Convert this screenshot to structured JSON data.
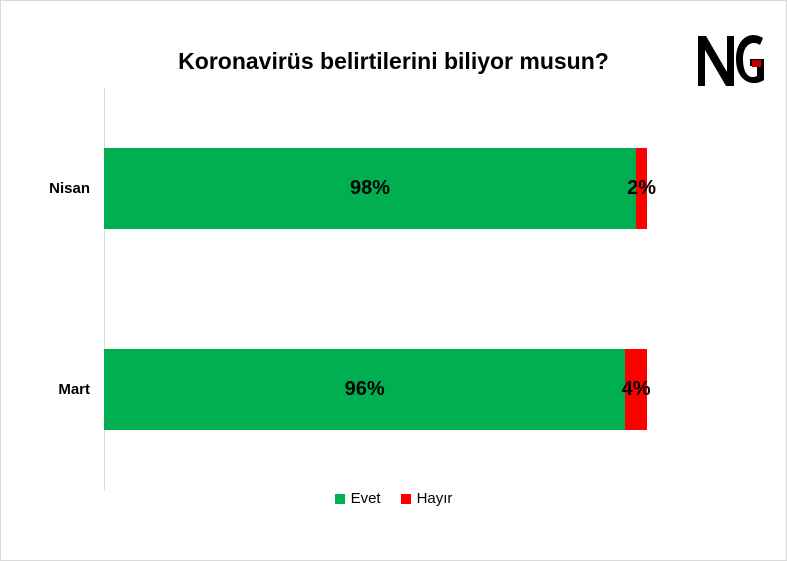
{
  "chart_data": {
    "type": "bar",
    "orientation": "horizontal",
    "stacked": true,
    "title": "Koronavirüs belirtilerini biliyor musun?",
    "categories": [
      "Nisan",
      "Mart"
    ],
    "series": [
      {
        "name": "Evet",
        "values": [
          98,
          96
        ],
        "labels": [
          "98%",
          "96%"
        ],
        "color": "#00b050"
      },
      {
        "name": "Hayır",
        "values": [
          2,
          4
        ],
        "labels": [
          "2%",
          "4%"
        ],
        "color": "#ff0000"
      }
    ],
    "xlim": [
      0,
      100
    ],
    "grid": false,
    "legend_position": "bottom"
  },
  "logo": {
    "text": "NG",
    "colors": [
      "#000000",
      "#c00000"
    ]
  }
}
